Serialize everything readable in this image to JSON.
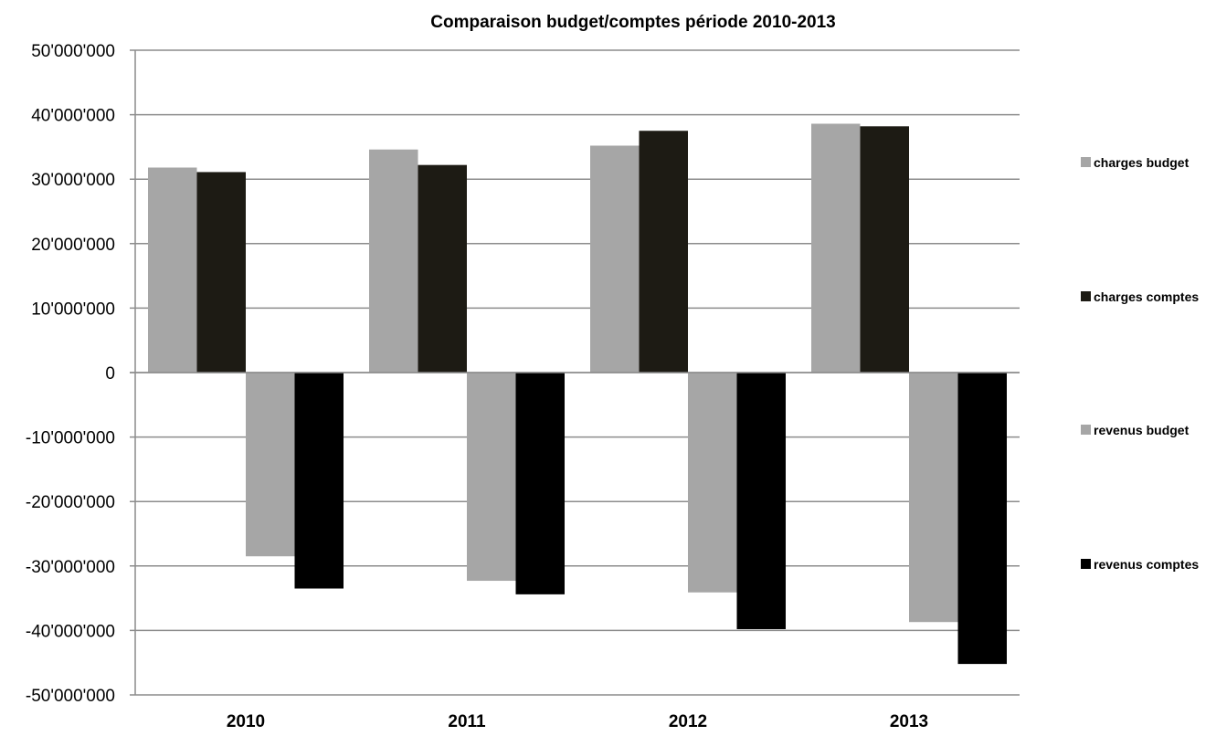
{
  "chart_data": {
    "type": "bar",
    "title": "Comparaison budget/comptes période 2010-2013",
    "xlabel": "",
    "ylabel": "",
    "categories": [
      "2010",
      "2011",
      "2012",
      "2013"
    ],
    "ylim": [
      -50000000,
      50000000
    ],
    "yticks": [
      50000000,
      40000000,
      30000000,
      20000000,
      10000000,
      0,
      -10000000,
      -20000000,
      -30000000,
      -40000000,
      -50000000
    ],
    "ytick_labels": [
      "50'000'000",
      "40'000'000",
      "30'000'000",
      "20'000'000",
      "10'000'000",
      "0",
      "-10'000'000",
      "-20'000'000",
      "-30'000'000",
      "-40'000'000",
      "-50'000'000"
    ],
    "grid": true,
    "legend_position": "right",
    "series": [
      {
        "name": "charges budget",
        "color": "#a6a6a6",
        "values": [
          31800000,
          34600000,
          35200000,
          38600000
        ]
      },
      {
        "name": "charges comptes",
        "color": "#1d1b14",
        "values": [
          31100000,
          32200000,
          37500000,
          38200000
        ]
      },
      {
        "name": "revenus budget",
        "color": "#a6a6a6",
        "values": [
          -28500000,
          -32300000,
          -34100000,
          -38700000
        ]
      },
      {
        "name": "revenus comptes",
        "color": "#000000",
        "values": [
          -33500000,
          -34400000,
          -39800000,
          -45200000
        ]
      }
    ]
  }
}
